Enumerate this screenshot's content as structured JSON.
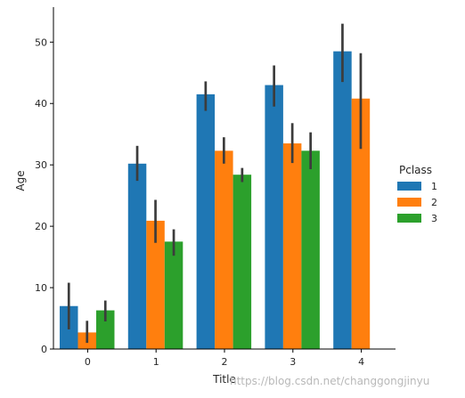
{
  "chart_data": {
    "type": "bar",
    "xlabel": "Title",
    "ylabel": "Age",
    "categories": [
      "0",
      "1",
      "2",
      "3",
      "4"
    ],
    "ylim": [
      0,
      55.7
    ],
    "yticks": [
      0,
      10,
      20,
      30,
      40,
      50
    ],
    "grid": false,
    "legend": {
      "title": "Pclass",
      "placement": "right"
    },
    "series": [
      {
        "name": "1",
        "color": "#1f77b4",
        "values": [
          7.0,
          30.2,
          41.5,
          43.0,
          48.5
        ],
        "err_low": [
          3.2,
          27.4,
          38.8,
          39.5,
          43.5
        ],
        "err_high": [
          10.8,
          33.1,
          43.6,
          46.2,
          53.0
        ]
      },
      {
        "name": "2",
        "color": "#ff7f0e",
        "values": [
          2.7,
          20.9,
          32.3,
          33.5,
          40.8
        ],
        "err_low": [
          1.0,
          17.3,
          30.2,
          30.3,
          32.6
        ],
        "err_high": [
          4.6,
          24.3,
          34.5,
          36.8,
          48.2
        ]
      },
      {
        "name": "3",
        "color": "#2ca02c",
        "values": [
          6.3,
          17.5,
          28.4,
          32.3,
          null
        ],
        "err_low": [
          4.5,
          15.2,
          27.2,
          29.3,
          null
        ],
        "err_high": [
          7.9,
          19.5,
          29.5,
          35.3,
          null
        ]
      }
    ]
  },
  "watermark": "https://blog.csdn.net/changgongjinyu"
}
